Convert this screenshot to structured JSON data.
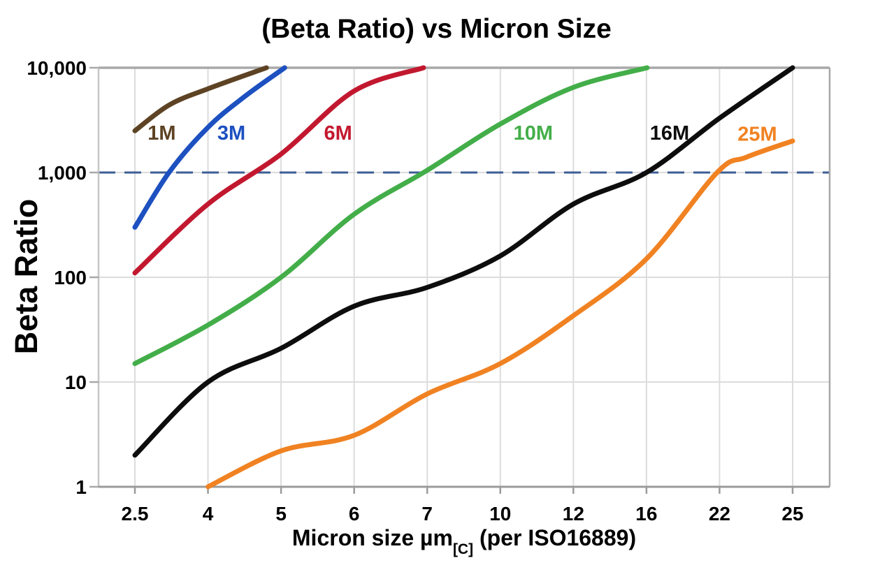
{
  "chart_data": {
    "type": "line",
    "title": "(Beta Ratio) vs Micron Size",
    "ylabel": "Beta Ratio",
    "xlabel": {
      "main": "Micron size µm",
      "subscript": "[C]",
      "tail": " (per ISO16889)"
    },
    "x_scale": "categorical",
    "y_scale": "log",
    "ylim": [
      1,
      10000
    ],
    "categories": [
      2.5,
      4,
      5,
      6,
      7,
      10,
      12,
      16,
      22,
      25
    ],
    "x_tick_labels": [
      "2.5",
      "4",
      "5",
      "6",
      "7",
      "10",
      "12",
      "16",
      "22",
      "25"
    ],
    "y_ticks": [
      1,
      10,
      100,
      1000,
      10000
    ],
    "y_tick_labels": [
      "1",
      "10",
      "100",
      "1,000",
      "10,000"
    ],
    "grid": true,
    "legend_position": "inline-labels",
    "reference_line": {
      "value": 1000,
      "style": "dashed",
      "color": "#3d5e94"
    },
    "series": [
      {
        "name": "1M",
        "color": "#5d4324",
        "label_at": [
          3.05,
          2400
        ],
        "points": [
          [
            2.5,
            2500
          ],
          [
            3.2,
            4400
          ],
          [
            4,
            6300
          ],
          [
            4.8,
            10000
          ]
        ]
      },
      {
        "name": "3M",
        "color": "#1d50c0",
        "label_at": [
          4.32,
          2400
        ],
        "points": [
          [
            2.5,
            300
          ],
          [
            3.2,
            1000
          ],
          [
            4,
            2700
          ],
          [
            4.5,
            5300
          ],
          [
            5.05,
            10000
          ]
        ]
      },
      {
        "name": "6M",
        "color": "#c2182f",
        "label_at": [
          5.78,
          2400
        ],
        "points": [
          [
            2.5,
            110
          ],
          [
            4,
            500
          ],
          [
            5,
            1500
          ],
          [
            6,
            6000
          ],
          [
            6.95,
            10000
          ]
        ]
      },
      {
        "name": "10M",
        "color": "#43ae49",
        "label_at": [
          10.9,
          2400
        ],
        "points": [
          [
            2.5,
            15
          ],
          [
            4,
            35
          ],
          [
            5,
            100
          ],
          [
            6,
            400
          ],
          [
            7,
            1050
          ],
          [
            10,
            2900
          ],
          [
            12,
            6500
          ],
          [
            16.05,
            10000
          ]
        ]
      },
      {
        "name": "16M",
        "color": "#0d0d0d",
        "label_at": [
          17.9,
          2400
        ],
        "points": [
          [
            2.5,
            2
          ],
          [
            4,
            10
          ],
          [
            5,
            21
          ],
          [
            6,
            53
          ],
          [
            7,
            80
          ],
          [
            10,
            160
          ],
          [
            12,
            500
          ],
          [
            16,
            1000
          ],
          [
            22,
            3300
          ],
          [
            25,
            10000
          ]
        ]
      },
      {
        "name": "25M",
        "color": "#f08222",
        "label_at": [
          23.55,
          2350
        ],
        "points": [
          [
            4,
            1
          ],
          [
            5,
            2.2
          ],
          [
            6,
            3.1
          ],
          [
            7,
            7.7
          ],
          [
            10,
            15
          ],
          [
            12,
            43
          ],
          [
            16,
            150
          ],
          [
            21.8,
            1000
          ],
          [
            23.1,
            1400
          ],
          [
            25,
            2000
          ]
        ]
      }
    ]
  },
  "colors": {
    "background": "#ffffff",
    "grid": "#dcdcdc",
    "axis": "#9b9b9b",
    "border": "#a8a8a8",
    "left_axis": "#c6c6c6",
    "text": "#000000"
  }
}
